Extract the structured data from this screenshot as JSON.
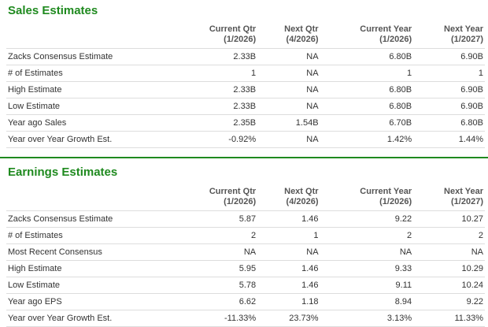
{
  "sales": {
    "title": "Sales Estimates",
    "headers": [
      [
        "Current Qtr",
        "(1/2026)"
      ],
      [
        "Next Qtr",
        "(4/2026)"
      ],
      [
        "Current Year",
        "(1/2026)"
      ],
      [
        "Next Year",
        "(1/2027)"
      ]
    ],
    "rows": [
      [
        "Zacks Consensus Estimate",
        "2.33B",
        "NA",
        "6.80B",
        "6.90B"
      ],
      [
        "# of Estimates",
        "1",
        "NA",
        "1",
        "1"
      ],
      [
        "High Estimate",
        "2.33B",
        "NA",
        "6.80B",
        "6.90B"
      ],
      [
        "Low Estimate",
        "2.33B",
        "NA",
        "6.80B",
        "6.90B"
      ],
      [
        "Year ago Sales",
        "2.35B",
        "1.54B",
        "6.70B",
        "6.80B"
      ],
      [
        "Year over Year Growth Est.",
        "-0.92%",
        "NA",
        "1.42%",
        "1.44%"
      ]
    ]
  },
  "earnings": {
    "title": "Earnings Estimates",
    "headers": [
      [
        "Current Qtr",
        "(1/2026)"
      ],
      [
        "Next Qtr",
        "(4/2026)"
      ],
      [
        "Current Year",
        "(1/2026)"
      ],
      [
        "Next Year",
        "(1/2027)"
      ]
    ],
    "rows": [
      [
        "Zacks Consensus Estimate",
        "5.87",
        "1.46",
        "9.22",
        "10.27"
      ],
      [
        "# of Estimates",
        "2",
        "1",
        "2",
        "2"
      ],
      [
        "Most Recent Consensus",
        "NA",
        "NA",
        "NA",
        "NA"
      ],
      [
        "High Estimate",
        "5.95",
        "1.46",
        "9.33",
        "10.29"
      ],
      [
        "Low Estimate",
        "5.78",
        "1.46",
        "9.11",
        "10.24"
      ],
      [
        "Year ago EPS",
        "6.62",
        "1.18",
        "8.94",
        "9.22"
      ],
      [
        "Year over Year Growth Est.",
        "-11.33%",
        "23.73%",
        "3.13%",
        "11.33%"
      ]
    ]
  }
}
